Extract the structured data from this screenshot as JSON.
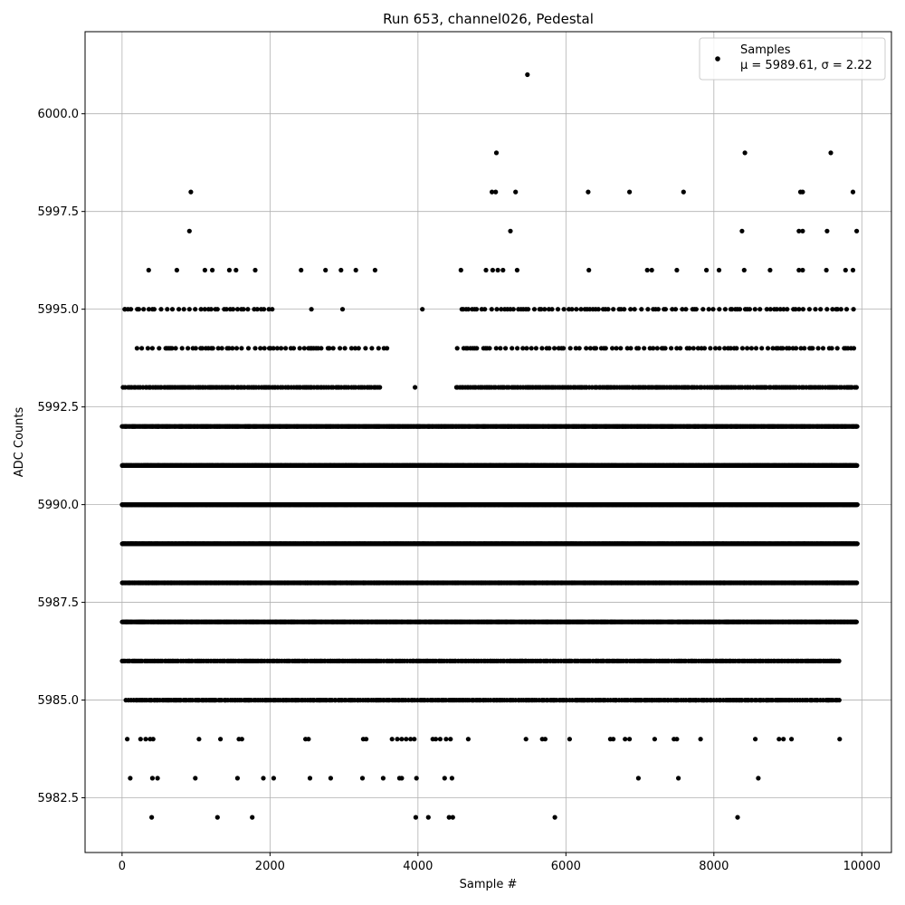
{
  "chart_data": {
    "type": "scatter",
    "title": "Run 653, channel026, Pedestal",
    "xlabel": "Sample #",
    "ylabel": "ADC Counts",
    "xlim": [
      -500,
      10400
    ],
    "ylim": [
      5981.1,
      6002.1
    ],
    "x_ticks": [
      0,
      2000,
      4000,
      6000,
      8000,
      10000
    ],
    "x_tick_labels": [
      "0",
      "2000",
      "4000",
      "6000",
      "8000",
      "10000"
    ],
    "y_ticks": [
      5982.5,
      5985.0,
      5987.5,
      5990.0,
      5992.5,
      5995.0,
      5997.5,
      6000.0
    ],
    "y_tick_labels": [
      "5982.5",
      "5985.0",
      "5987.5",
      "5990.0",
      "5992.5",
      "5995.0",
      "5997.5",
      "6000.0"
    ],
    "grid": true,
    "legend_position": "top-right",
    "marker_color": "#000000",
    "series": [
      {
        "name": "Samples",
        "legend_text": "μ = 5989.61, σ = 2.22",
        "rows": [
          {
            "y": 5989,
            "density": "solid",
            "x_ranges": [
              [
                0,
                9940
              ]
            ]
          },
          {
            "y": 5990,
            "density": "solid",
            "x_ranges": [
              [
                0,
                9940
              ]
            ]
          },
          {
            "y": 5991,
            "density": "solid",
            "x_ranges": [
              [
                0,
                9940
              ]
            ]
          },
          {
            "y": 5992,
            "density": "dense",
            "x_ranges": [
              [
                0,
                9940
              ]
            ]
          },
          {
            "y": 5988,
            "density": "dense",
            "x_ranges": [
              [
                0,
                9940
              ]
            ]
          },
          {
            "y": 5987,
            "density": "dense",
            "x_ranges": [
              [
                0,
                9940
              ]
            ]
          },
          {
            "y": 5986,
            "density": "medium",
            "x_ranges": [
              [
                0,
                9720
              ]
            ]
          },
          {
            "y": 5993,
            "density": "medium",
            "x_ranges": [
              [
                0,
                3500
              ],
              [
                4520,
                9940
              ]
            ]
          },
          {
            "y": 5985,
            "density": "medium",
            "x_ranges": [
              [
                40,
                9700
              ]
            ]
          },
          {
            "y": 5994,
            "density": "sparse",
            "x_ranges": [
              [
                180,
                3600
              ],
              [
                4500,
                9940
              ]
            ]
          },
          {
            "y": 5995,
            "density": "sparse",
            "x_ranges": [
              [
                20,
                2100
              ],
              [
                4580,
                9940
              ]
            ]
          }
        ],
        "points": [
          {
            "x": 40,
            "y": 5995
          },
          {
            "x": 4060,
            "y": 5995
          },
          {
            "x": 2560,
            "y": 5995
          },
          {
            "x": 2980,
            "y": 5995
          },
          {
            "x": 3960,
            "y": 5993
          },
          {
            "x": 360,
            "y": 5996
          },
          {
            "x": 740,
            "y": 5996
          },
          {
            "x": 1120,
            "y": 5996
          },
          {
            "x": 1220,
            "y": 5996
          },
          {
            "x": 1450,
            "y": 5996
          },
          {
            "x": 1540,
            "y": 5996
          },
          {
            "x": 1800,
            "y": 5996
          },
          {
            "x": 2420,
            "y": 5996
          },
          {
            "x": 2750,
            "y": 5996
          },
          {
            "x": 2960,
            "y": 5996
          },
          {
            "x": 3160,
            "y": 5996
          },
          {
            "x": 3420,
            "y": 5996
          },
          {
            "x": 4580,
            "y": 5996
          },
          {
            "x": 4920,
            "y": 5996
          },
          {
            "x": 5010,
            "y": 5996
          },
          {
            "x": 5080,
            "y": 5996
          },
          {
            "x": 5150,
            "y": 5996
          },
          {
            "x": 5340,
            "y": 5996
          },
          {
            "x": 6310,
            "y": 5996
          },
          {
            "x": 7100,
            "y": 5996
          },
          {
            "x": 7160,
            "y": 5996
          },
          {
            "x": 7500,
            "y": 5996
          },
          {
            "x": 7900,
            "y": 5996
          },
          {
            "x": 8070,
            "y": 5996
          },
          {
            "x": 8410,
            "y": 5996
          },
          {
            "x": 8760,
            "y": 5996
          },
          {
            "x": 9150,
            "y": 5996
          },
          {
            "x": 9200,
            "y": 5996
          },
          {
            "x": 9520,
            "y": 5996
          },
          {
            "x": 9780,
            "y": 5996
          },
          {
            "x": 9880,
            "y": 5996
          },
          {
            "x": 910,
            "y": 5997
          },
          {
            "x": 5250,
            "y": 5997
          },
          {
            "x": 8380,
            "y": 5997
          },
          {
            "x": 9150,
            "y": 5997
          },
          {
            "x": 9200,
            "y": 5997
          },
          {
            "x": 9530,
            "y": 5997
          },
          {
            "x": 9930,
            "y": 5997
          },
          {
            "x": 930,
            "y": 5998
          },
          {
            "x": 5000,
            "y": 5998
          },
          {
            "x": 5050,
            "y": 5998
          },
          {
            "x": 5320,
            "y": 5998
          },
          {
            "x": 6300,
            "y": 5998
          },
          {
            "x": 6860,
            "y": 5998
          },
          {
            "x": 7590,
            "y": 5998
          },
          {
            "x": 9170,
            "y": 5998
          },
          {
            "x": 9200,
            "y": 5998
          },
          {
            "x": 9880,
            "y": 5998
          },
          {
            "x": 5060,
            "y": 5999
          },
          {
            "x": 8420,
            "y": 5999
          },
          {
            "x": 9580,
            "y": 5999
          },
          {
            "x": 5480,
            "y": 6001
          },
          {
            "x": 70,
            "y": 5984
          },
          {
            "x": 250,
            "y": 5984
          },
          {
            "x": 320,
            "y": 5984
          },
          {
            "x": 380,
            "y": 5984
          },
          {
            "x": 420,
            "y": 5984
          },
          {
            "x": 1040,
            "y": 5984
          },
          {
            "x": 1330,
            "y": 5984
          },
          {
            "x": 1580,
            "y": 5984
          },
          {
            "x": 1620,
            "y": 5984
          },
          {
            "x": 2480,
            "y": 5984
          },
          {
            "x": 2520,
            "y": 5984
          },
          {
            "x": 3260,
            "y": 5984
          },
          {
            "x": 3300,
            "y": 5984
          },
          {
            "x": 3650,
            "y": 5984
          },
          {
            "x": 3720,
            "y": 5984
          },
          {
            "x": 3780,
            "y": 5984
          },
          {
            "x": 3840,
            "y": 5984
          },
          {
            "x": 3900,
            "y": 5984
          },
          {
            "x": 3950,
            "y": 5984
          },
          {
            "x": 4200,
            "y": 5984
          },
          {
            "x": 4240,
            "y": 5984
          },
          {
            "x": 4300,
            "y": 5984
          },
          {
            "x": 4380,
            "y": 5984
          },
          {
            "x": 4440,
            "y": 5984
          },
          {
            "x": 4680,
            "y": 5984
          },
          {
            "x": 5460,
            "y": 5984
          },
          {
            "x": 5680,
            "y": 5984
          },
          {
            "x": 5720,
            "y": 5984
          },
          {
            "x": 6050,
            "y": 5984
          },
          {
            "x": 6600,
            "y": 5984
          },
          {
            "x": 6640,
            "y": 5984
          },
          {
            "x": 6800,
            "y": 5984
          },
          {
            "x": 6860,
            "y": 5984
          },
          {
            "x": 7200,
            "y": 5984
          },
          {
            "x": 7460,
            "y": 5984
          },
          {
            "x": 7500,
            "y": 5984
          },
          {
            "x": 7820,
            "y": 5984
          },
          {
            "x": 8560,
            "y": 5984
          },
          {
            "x": 8880,
            "y": 5984
          },
          {
            "x": 8940,
            "y": 5984
          },
          {
            "x": 9050,
            "y": 5984
          },
          {
            "x": 9700,
            "y": 5984
          },
          {
            "x": 110,
            "y": 5983
          },
          {
            "x": 410,
            "y": 5983
          },
          {
            "x": 480,
            "y": 5983
          },
          {
            "x": 990,
            "y": 5983
          },
          {
            "x": 1560,
            "y": 5983
          },
          {
            "x": 1910,
            "y": 5983
          },
          {
            "x": 2050,
            "y": 5983
          },
          {
            "x": 2540,
            "y": 5983
          },
          {
            "x": 2820,
            "y": 5983
          },
          {
            "x": 3250,
            "y": 5983
          },
          {
            "x": 3530,
            "y": 5983
          },
          {
            "x": 3750,
            "y": 5983
          },
          {
            "x": 3780,
            "y": 5983
          },
          {
            "x": 3980,
            "y": 5983
          },
          {
            "x": 4360,
            "y": 5983
          },
          {
            "x": 4460,
            "y": 5983
          },
          {
            "x": 6980,
            "y": 5983
          },
          {
            "x": 7520,
            "y": 5983
          },
          {
            "x": 8600,
            "y": 5983
          },
          {
            "x": 400,
            "y": 5982
          },
          {
            "x": 1290,
            "y": 5982
          },
          {
            "x": 1760,
            "y": 5982
          },
          {
            "x": 3970,
            "y": 5982
          },
          {
            "x": 4140,
            "y": 5982
          },
          {
            "x": 4420,
            "y": 5982
          },
          {
            "x": 4470,
            "y": 5982
          },
          {
            "x": 5850,
            "y": 5982
          },
          {
            "x": 8320,
            "y": 5982
          }
        ]
      }
    ]
  }
}
